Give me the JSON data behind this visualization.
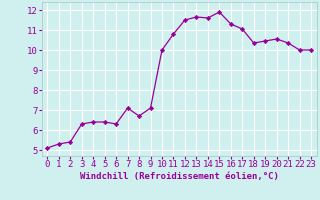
{
  "x": [
    0,
    1,
    2,
    3,
    4,
    5,
    6,
    7,
    8,
    9,
    10,
    11,
    12,
    13,
    14,
    15,
    16,
    17,
    18,
    19,
    20,
    21,
    22,
    23
  ],
  "y": [
    5.1,
    5.3,
    5.4,
    6.3,
    6.4,
    6.4,
    6.3,
    7.1,
    6.7,
    7.1,
    10.0,
    10.8,
    11.5,
    11.65,
    11.6,
    11.9,
    11.3,
    11.05,
    10.35,
    10.45,
    10.55,
    10.35,
    10.0,
    10.0
  ],
  "line_color": "#990099",
  "marker_color": "#990099",
  "bg_color": "#cff0ee",
  "grid_color": "#ffffff",
  "xlabel": "Windchill (Refroidissement éolien,°C)",
  "tick_label_color": "#990099",
  "ylabel_ticks": [
    5,
    6,
    7,
    8,
    9,
    10,
    11,
    12
  ],
  "xlim": [
    -0.5,
    23.5
  ],
  "ylim": [
    4.7,
    12.4
  ],
  "tick_fontsize": 6.5,
  "xlabel_fontsize": 6.5
}
